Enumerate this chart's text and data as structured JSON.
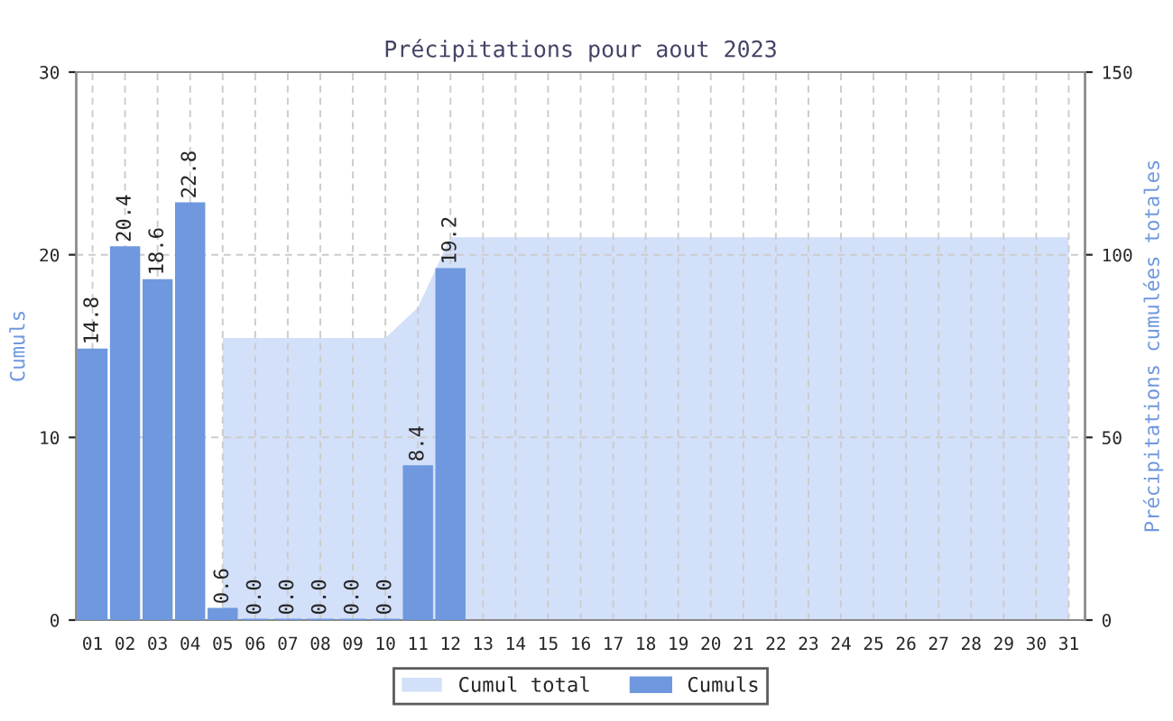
{
  "chart_data": {
    "type": "bar",
    "title": "Précipitations pour aout 2023",
    "ylabel": "Cumuls",
    "y2label": "Précipitations cumulées totales",
    "categories": [
      "01",
      "02",
      "03",
      "04",
      "05",
      "06",
      "07",
      "08",
      "09",
      "10",
      "11",
      "12",
      "13",
      "14",
      "15",
      "16",
      "17",
      "18",
      "19",
      "20",
      "21",
      "22",
      "23",
      "24",
      "25",
      "26",
      "27",
      "28",
      "29",
      "30",
      "31"
    ],
    "series": [
      {
        "name": "Cumul total",
        "type": "area",
        "axis": "y2",
        "color": "#d3e0f9",
        "values": [
          null,
          null,
          null,
          null,
          77.2,
          77.2,
          77.2,
          77.2,
          77.2,
          77.2,
          85.6,
          104.8,
          104.8,
          104.8,
          104.8,
          104.8,
          104.8,
          104.8,
          104.8,
          104.8,
          104.8,
          104.8,
          104.8,
          104.8,
          104.8,
          104.8,
          104.8,
          104.8,
          104.8,
          104.8,
          104.8
        ]
      },
      {
        "name": "Cumuls",
        "color": "#6f98de",
        "values": [
          14.8,
          20.4,
          18.6,
          22.8,
          0.6,
          0.0,
          0.0,
          0.0,
          0.0,
          0.0,
          8.4,
          19.2,
          null,
          null,
          null,
          null,
          null,
          null,
          null,
          null,
          null,
          null,
          null,
          null,
          null,
          null,
          null,
          null,
          null,
          null,
          null
        ],
        "value_labels": [
          "14.8",
          "20.4",
          "18.6",
          "22.8",
          "0.6",
          "0.0",
          "0.0",
          "0.0",
          "0.0",
          "0.0",
          "8.4",
          "19.2",
          null,
          null,
          null,
          null,
          null,
          null,
          null,
          null,
          null,
          null,
          null,
          null,
          null,
          null,
          null,
          null,
          null,
          null,
          null
        ]
      }
    ],
    "ylim": [
      0,
      30
    ],
    "yticks": [
      0,
      10,
      20,
      30
    ],
    "y2lim": [
      0,
      150
    ],
    "y2ticks": [
      0,
      50,
      100,
      150
    ],
    "grid": true,
    "legend": "bottom"
  }
}
